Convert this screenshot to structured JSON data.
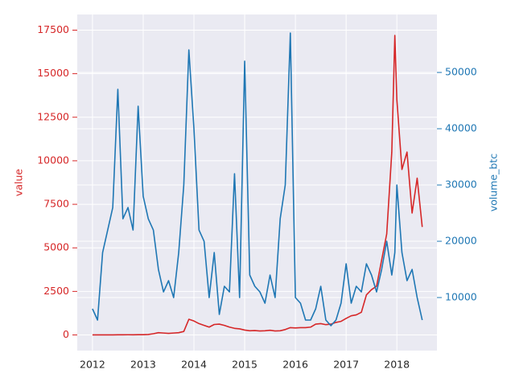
{
  "chart_data": {
    "type": "line",
    "x": [
      2012.0,
      2012.1,
      2012.2,
      2012.3,
      2012.4,
      2012.5,
      2012.6,
      2012.7,
      2012.8,
      2012.9,
      2013.0,
      2013.1,
      2013.2,
      2013.3,
      2013.4,
      2013.5,
      2013.6,
      2013.7,
      2013.8,
      2013.9,
      2014.0,
      2014.1,
      2014.2,
      2014.3,
      2014.4,
      2014.5,
      2014.6,
      2014.7,
      2014.8,
      2014.9,
      2015.0,
      2015.1,
      2015.2,
      2015.3,
      2015.4,
      2015.5,
      2015.6,
      2015.7,
      2015.8,
      2015.9,
      2016.0,
      2016.1,
      2016.2,
      2016.3,
      2016.4,
      2016.5,
      2016.6,
      2016.7,
      2016.8,
      2016.9,
      2017.0,
      2017.1,
      2017.2,
      2017.3,
      2017.4,
      2017.5,
      2017.6,
      2017.7,
      2017.8,
      2017.9,
      2017.96,
      2018.0,
      2018.1,
      2018.2,
      2018.3,
      2018.4,
      2018.5
    ],
    "series": [
      {
        "name": "value",
        "color": "#d62728",
        "axis": "y",
        "values": [
          5,
          5,
          5,
          5,
          5,
          7,
          10,
          12,
          11,
          13,
          14,
          25,
          70,
          130,
          110,
          90,
          110,
          130,
          200,
          900,
          800,
          650,
          550,
          450,
          600,
          620,
          550,
          450,
          380,
          350,
          280,
          240,
          250,
          230,
          240,
          270,
          230,
          240,
          310,
          420,
          400,
          420,
          420,
          450,
          620,
          650,
          590,
          620,
          720,
          780,
          950,
          1100,
          1150,
          1300,
          2300,
          2600,
          2800,
          4300,
          5800,
          10500,
          17200,
          13500,
          9500,
          10500,
          7000,
          9000,
          6200
        ]
      },
      {
        "name": "volume_btc",
        "color": "#1f77b4",
        "axis": "y2",
        "values": [
          8000,
          6000,
          18000,
          22000,
          26000,
          47000,
          24000,
          26000,
          22000,
          44000,
          28000,
          24000,
          22000,
          15000,
          11000,
          13000,
          10000,
          18000,
          30000,
          54000,
          40000,
          22000,
          20000,
          10000,
          18000,
          7000,
          12000,
          11000,
          32000,
          10000,
          52000,
          14000,
          12000,
          11000,
          9000,
          14000,
          10000,
          24000,
          30000,
          57000,
          10000,
          9000,
          6000,
          6000,
          8000,
          12000,
          6000,
          5000,
          6000,
          9000,
          16000,
          9000,
          12000,
          11000,
          16000,
          14000,
          11000,
          15000,
          20000,
          14000,
          18000,
          30000,
          18000,
          13000,
          15000,
          10000,
          6000
        ]
      }
    ],
    "ylabel": "value",
    "y2label": "volume_btc",
    "xlim": [
      2011.7,
      2018.79
    ],
    "xticks": [
      2012,
      2013,
      2014,
      2015,
      2016,
      2017,
      2018
    ],
    "ylim": [
      -900,
      18400
    ],
    "yticks": [
      0,
      2500,
      5000,
      7500,
      10000,
      12500,
      15000,
      17500
    ],
    "y2lim": [
      570,
      60300
    ],
    "y2ticks": [
      10000,
      20000,
      30000,
      40000,
      50000
    ],
    "grid": true
  }
}
